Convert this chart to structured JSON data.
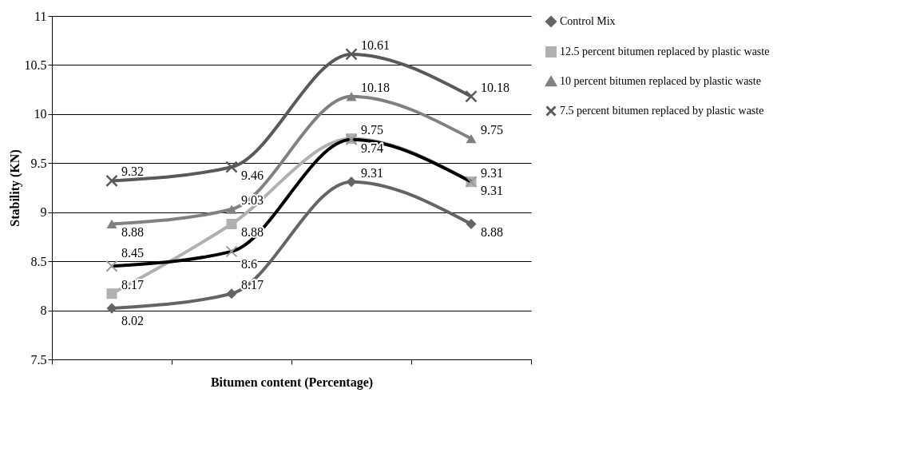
{
  "chart_data": {
    "type": "line",
    "xlabel": "Bitumen content (Percentage)",
    "ylabel": "Stability (KN)",
    "categories": [
      null,
      null,
      null,
      null
    ],
    "series": [
      {
        "name": "Control Mix",
        "color": "#646464",
        "marker": "diamond",
        "values": [
          8.02,
          8.17,
          9.31,
          8.88
        ]
      },
      {
        "name": "12.5 percent bitumen replaced by plastic waste",
        "color": "#b0b0b0",
        "marker": "square",
        "values": [
          8.17,
          8.88,
          9.75,
          9.31
        ]
      },
      {
        "name": "10 percent bitumen replaced by plastic waste",
        "color": "#808080",
        "marker": "triangle",
        "values": [
          8.88,
          9.03,
          10.18,
          9.75
        ]
      },
      {
        "name": "7.5 percent bitumen replaced by plastic waste",
        "color": "#595959",
        "marker": "cross",
        "values": [
          9.32,
          9.46,
          10.61,
          10.18
        ]
      },
      {
        "color": "#000000",
        "marker": "cross",
        "values": [
          8.45,
          8.6,
          9.74,
          9.31
        ]
      }
    ],
    "ylim": [
      7.5,
      11
    ],
    "yticks": [
      7.5,
      8,
      8.5,
      9,
      9.5,
      10,
      10.5,
      11
    ],
    "grid": "y",
    "legend": "right",
    "data_labels": true,
    "line_style": "solid"
  }
}
